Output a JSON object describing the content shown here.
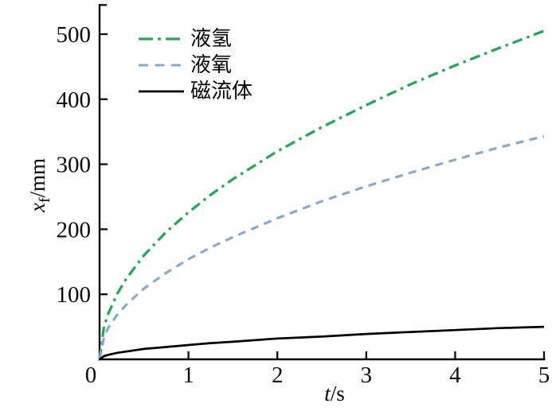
{
  "figure": {
    "background": "#ffffff",
    "axis_color": "#000000",
    "text_color": "#0b0b0b"
  },
  "chart_data": {
    "type": "line",
    "title": "",
    "xlabel": {
      "symbol": "t",
      "unit": "/s"
    },
    "ylabel": {
      "symbol": "x",
      "subscript": "f",
      "unit": "/mm"
    },
    "xlim": [
      0,
      5
    ],
    "ylim": [
      0,
      545
    ],
    "x_ticks": [
      0,
      1,
      2,
      3,
      4,
      5
    ],
    "y_ticks": [
      100,
      200,
      300,
      400,
      500
    ],
    "grid": false,
    "legend_position": "upper-left-inside",
    "x": [
      0,
      0.05,
      0.1,
      0.2,
      0.3,
      0.5,
      0.75,
      1,
      1.25,
      1.5,
      2,
      2.5,
      3,
      3.5,
      4,
      4.5,
      5
    ],
    "series": [
      {
        "id": "liquid-hydrogen",
        "name": "液氢",
        "color": "#2da25a",
        "style": "dash-dot",
        "width": 3.3,
        "values": [
          0,
          51,
          71,
          101,
          124,
          160,
          196,
          226,
          253,
          277,
          320,
          357,
          391,
          423,
          452,
          479,
          505
        ]
      },
      {
        "id": "liquid-oxygen",
        "name": "液氧",
        "color": "#8aa6cc",
        "style": "dashed",
        "width": 3.1,
        "values": [
          0,
          34,
          49,
          69,
          84,
          109,
          133,
          154,
          172,
          188,
          217,
          243,
          266,
          287,
          307,
          326,
          343
        ]
      },
      {
        "id": "magnetic-fluid",
        "name": "磁流体",
        "color": "#000000",
        "style": "solid",
        "width": 2.7,
        "values": [
          0,
          5,
          7,
          10,
          12,
          16,
          19,
          22,
          25,
          27,
          32,
          35,
          39,
          42,
          45,
          48,
          50
        ]
      }
    ]
  }
}
